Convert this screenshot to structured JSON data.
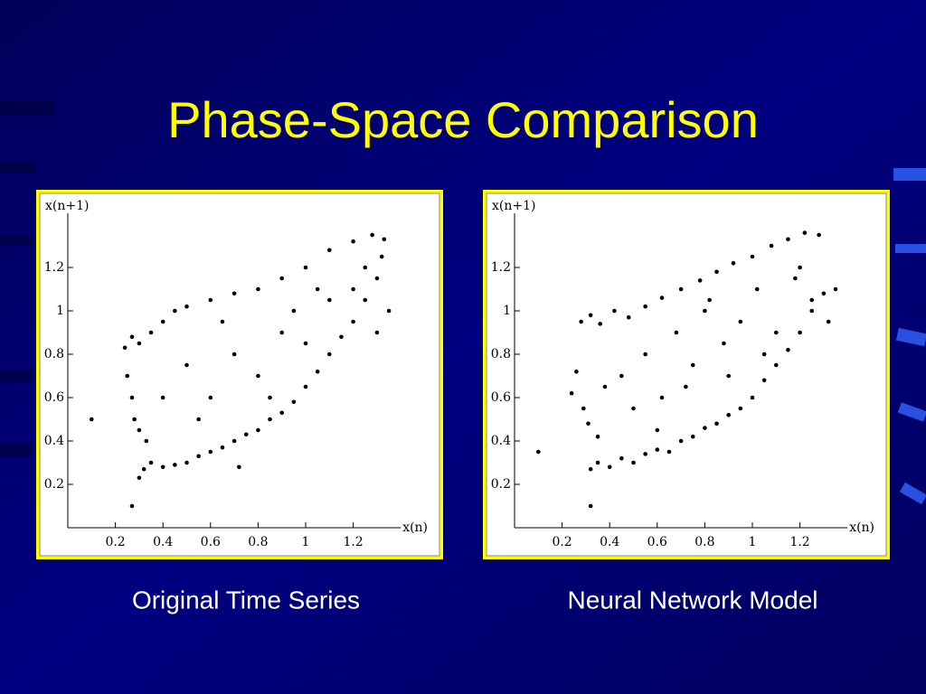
{
  "title": "Phase-Space Comparison",
  "chart_data": [
    {
      "type": "scatter",
      "caption": "Original Time Series",
      "xlabel": "x(n)",
      "ylabel": "x(n+1)",
      "color": "#000000",
      "xlim": [
        0,
        1.4
      ],
      "ylim": [
        0,
        1.45
      ],
      "xticks": [
        0.2,
        0.4,
        0.6,
        0.8,
        1,
        1.2
      ],
      "yticks": [
        0.2,
        0.4,
        0.6,
        0.8,
        1,
        1.2
      ],
      "x": [
        0.3,
        0.32,
        0.35,
        0.4,
        0.45,
        0.5,
        0.55,
        0.6,
        0.65,
        0.7,
        0.75,
        0.8,
        0.85,
        0.9,
        0.95,
        1.0,
        1.05,
        1.1,
        1.15,
        1.2,
        1.25,
        1.3,
        1.32,
        0.24,
        0.27,
        0.3,
        0.35,
        0.4,
        0.45,
        0.5,
        0.6,
        0.7,
        0.8,
        0.9,
        1.0,
        1.1,
        1.2,
        1.28,
        1.33,
        0.25,
        0.27,
        0.28,
        0.3,
        0.33,
        0.5,
        0.6,
        0.7,
        0.8,
        0.9,
        1.0,
        1.1,
        1.2,
        0.85,
        0.95,
        0.65,
        1.05,
        1.25,
        0.4,
        0.55,
        1.3,
        1.35,
        0.1,
        0.27,
        0.72
      ],
      "values": [
        0.23,
        0.27,
        0.3,
        0.28,
        0.29,
        0.3,
        0.33,
        0.35,
        0.37,
        0.4,
        0.43,
        0.45,
        0.5,
        0.53,
        0.58,
        0.65,
        0.72,
        0.8,
        0.88,
        0.95,
        1.05,
        1.15,
        1.25,
        0.83,
        0.88,
        0.85,
        0.9,
        0.95,
        1.0,
        1.02,
        1.05,
        1.08,
        1.1,
        1.15,
        1.2,
        1.28,
        1.32,
        1.35,
        1.33,
        0.7,
        0.6,
        0.5,
        0.45,
        0.4,
        0.75,
        0.6,
        0.8,
        0.7,
        0.9,
        0.85,
        1.05,
        1.1,
        0.6,
        1.0,
        0.95,
        1.1,
        1.2,
        0.6,
        0.5,
        0.9,
        1.0,
        0.5,
        0.1,
        0.28
      ]
    },
    {
      "type": "scatter",
      "caption": "Neural Network Model",
      "xlabel": "x(n)",
      "ylabel": "x(n+1)",
      "color": "#000000",
      "xlim": [
        0,
        1.4
      ],
      "ylim": [
        0,
        1.45
      ],
      "xticks": [
        0.2,
        0.4,
        0.6,
        0.8,
        1,
        1.2
      ],
      "yticks": [
        0.2,
        0.4,
        0.6,
        0.8,
        1,
        1.2
      ],
      "x": [
        0.32,
        0.35,
        0.4,
        0.45,
        0.5,
        0.55,
        0.6,
        0.65,
        0.7,
        0.75,
        0.8,
        0.85,
        0.9,
        0.95,
        1.0,
        1.05,
        1.1,
        1.15,
        1.2,
        1.25,
        1.3,
        0.28,
        0.32,
        0.36,
        0.42,
        0.48,
        0.55,
        0.62,
        0.7,
        0.78,
        0.85,
        0.92,
        1.0,
        1.08,
        1.15,
        1.22,
        1.28,
        0.24,
        0.26,
        0.29,
        0.31,
        0.35,
        0.38,
        0.45,
        0.55,
        0.62,
        0.68,
        0.75,
        0.8,
        0.88,
        0.95,
        1.02,
        1.1,
        1.18,
        1.25,
        0.5,
        0.72,
        0.9,
        1.05,
        1.2,
        1.32,
        1.35,
        0.6,
        0.82,
        0.1,
        0.32
      ],
      "values": [
        0.27,
        0.3,
        0.28,
        0.32,
        0.3,
        0.34,
        0.36,
        0.35,
        0.4,
        0.42,
        0.46,
        0.48,
        0.52,
        0.55,
        0.6,
        0.68,
        0.75,
        0.82,
        0.9,
        1.0,
        1.08,
        0.95,
        0.98,
        0.94,
        1.0,
        0.97,
        1.02,
        1.06,
        1.1,
        1.14,
        1.18,
        1.22,
        1.25,
        1.3,
        1.33,
        1.36,
        1.35,
        0.62,
        0.72,
        0.55,
        0.48,
        0.42,
        0.65,
        0.7,
        0.8,
        0.6,
        0.9,
        0.75,
        1.0,
        0.85,
        0.95,
        1.1,
        0.9,
        1.15,
        1.05,
        0.55,
        0.65,
        0.7,
        0.8,
        1.2,
        0.95,
        1.1,
        0.45,
        1.05,
        0.35,
        0.1
      ]
    }
  ]
}
